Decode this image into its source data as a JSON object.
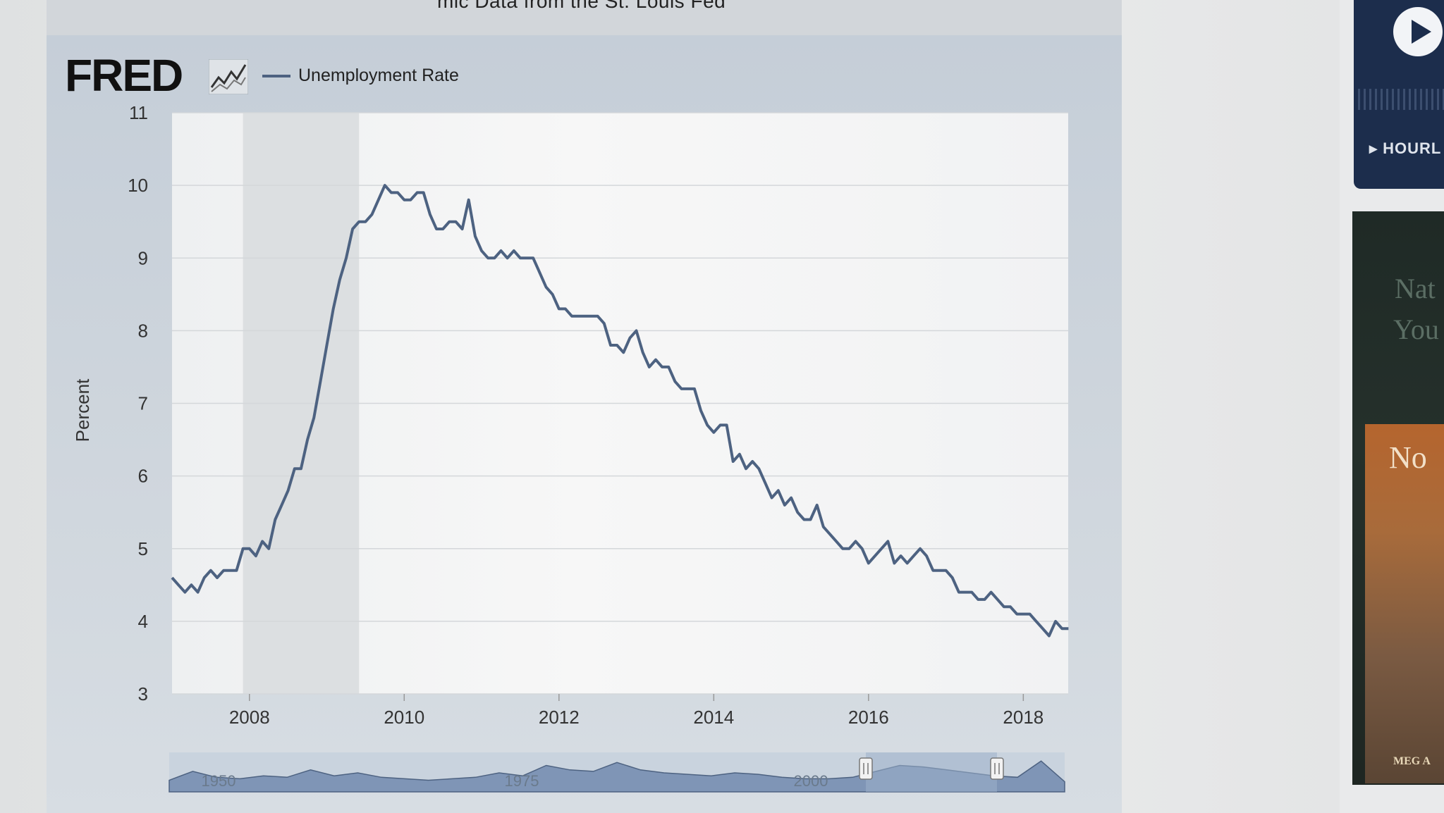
{
  "header": {
    "title_fragment": "mic Data from the St. Louis Fed"
  },
  "logo": {
    "text": "FRED"
  },
  "sidebar": {
    "hourly_label": "HOURL",
    "book_title_1": "Nat",
    "book_title_2": "You",
    "book_cover_title": "No",
    "book_author": "MEG A"
  },
  "chart_data": {
    "type": "line",
    "ylabel": "Percent",
    "ylim": [
      3,
      11
    ],
    "yticks": [
      "3",
      "4",
      "5",
      "6",
      "7",
      "8",
      "9",
      "10",
      "11"
    ],
    "xlim": [
      2007.0,
      2018.58
    ],
    "xticks": [
      {
        "label": "2008",
        "value": 2008
      },
      {
        "label": "2010",
        "value": 2010
      },
      {
        "label": "2012",
        "value": 2012
      },
      {
        "label": "2014",
        "value": 2014
      },
      {
        "label": "2016",
        "value": 2016
      },
      {
        "label": "2018",
        "value": 2018
      }
    ],
    "recession": {
      "start": "2007-12",
      "end": "2009-06"
    },
    "series": [
      {
        "name": "Unemployment Rate",
        "color": "#4d6281",
        "x": [
          "2007-01",
          "2007-02",
          "2007-03",
          "2007-04",
          "2007-05",
          "2007-06",
          "2007-07",
          "2007-08",
          "2007-09",
          "2007-10",
          "2007-11",
          "2007-12",
          "2008-01",
          "2008-02",
          "2008-03",
          "2008-04",
          "2008-05",
          "2008-06",
          "2008-07",
          "2008-08",
          "2008-09",
          "2008-10",
          "2008-11",
          "2008-12",
          "2009-01",
          "2009-02",
          "2009-03",
          "2009-04",
          "2009-05",
          "2009-06",
          "2009-07",
          "2009-08",
          "2009-09",
          "2009-10",
          "2009-11",
          "2009-12",
          "2010-01",
          "2010-02",
          "2010-03",
          "2010-04",
          "2010-05",
          "2010-06",
          "2010-07",
          "2010-08",
          "2010-09",
          "2010-10",
          "2010-11",
          "2010-12",
          "2011-01",
          "2011-02",
          "2011-03",
          "2011-04",
          "2011-05",
          "2011-06",
          "2011-07",
          "2011-08",
          "2011-09",
          "2011-10",
          "2011-11",
          "2011-12",
          "2012-01",
          "2012-02",
          "2012-03",
          "2012-04",
          "2012-05",
          "2012-06",
          "2012-07",
          "2012-08",
          "2012-09",
          "2012-10",
          "2012-11",
          "2012-12",
          "2013-01",
          "2013-02",
          "2013-03",
          "2013-04",
          "2013-05",
          "2013-06",
          "2013-07",
          "2013-08",
          "2013-09",
          "2013-10",
          "2013-11",
          "2013-12",
          "2014-01",
          "2014-02",
          "2014-03",
          "2014-04",
          "2014-05",
          "2014-06",
          "2014-07",
          "2014-08",
          "2014-09",
          "2014-10",
          "2014-11",
          "2014-12",
          "2015-01",
          "2015-02",
          "2015-03",
          "2015-04",
          "2015-05",
          "2015-06",
          "2015-07",
          "2015-08",
          "2015-09",
          "2015-10",
          "2015-11",
          "2015-12",
          "2016-01",
          "2016-02",
          "2016-03",
          "2016-04",
          "2016-05",
          "2016-06",
          "2016-07",
          "2016-08",
          "2016-09",
          "2016-10",
          "2016-11",
          "2016-12",
          "2017-01",
          "2017-02",
          "2017-03",
          "2017-04",
          "2017-05",
          "2017-06",
          "2017-07",
          "2017-08",
          "2017-09",
          "2017-10",
          "2017-11",
          "2017-12",
          "2018-01",
          "2018-02",
          "2018-03",
          "2018-04",
          "2018-05",
          "2018-06",
          "2018-07",
          "2018-08"
        ],
        "values": [
          4.6,
          4.5,
          4.4,
          4.5,
          4.4,
          4.6,
          4.7,
          4.6,
          4.7,
          4.7,
          4.7,
          5.0,
          5.0,
          4.9,
          5.1,
          5.0,
          5.4,
          5.6,
          5.8,
          6.1,
          6.1,
          6.5,
          6.8,
          7.3,
          7.8,
          8.3,
          8.7,
          9.0,
          9.4,
          9.5,
          9.5,
          9.6,
          9.8,
          10.0,
          9.9,
          9.9,
          9.8,
          9.8,
          9.9,
          9.9,
          9.6,
          9.4,
          9.4,
          9.5,
          9.5,
          9.4,
          9.8,
          9.3,
          9.1,
          9.0,
          9.0,
          9.1,
          9.0,
          9.1,
          9.0,
          9.0,
          9.0,
          8.8,
          8.6,
          8.5,
          8.3,
          8.3,
          8.2,
          8.2,
          8.2,
          8.2,
          8.2,
          8.1,
          7.8,
          7.8,
          7.7,
          7.9,
          8.0,
          7.7,
          7.5,
          7.6,
          7.5,
          7.5,
          7.3,
          7.2,
          7.2,
          7.2,
          6.9,
          6.7,
          6.6,
          6.7,
          6.7,
          6.2,
          6.3,
          6.1,
          6.2,
          6.1,
          5.9,
          5.7,
          5.8,
          5.6,
          5.7,
          5.5,
          5.4,
          5.4,
          5.6,
          5.3,
          5.2,
          5.1,
          5.0,
          5.0,
          5.1,
          5.0,
          4.8,
          4.9,
          5.0,
          5.1,
          4.8,
          4.9,
          4.8,
          4.9,
          5.0,
          4.9,
          4.7,
          4.7,
          4.7,
          4.6,
          4.4,
          4.4,
          4.4,
          4.3,
          4.3,
          4.4,
          4.3,
          4.2,
          4.2,
          4.1,
          4.1,
          4.1,
          4.0,
          3.9,
          3.8,
          4.0,
          3.9,
          3.9
        ]
      }
    ],
    "navigator": {
      "labels": [
        "1950",
        "1975",
        "2000"
      ]
    }
  }
}
